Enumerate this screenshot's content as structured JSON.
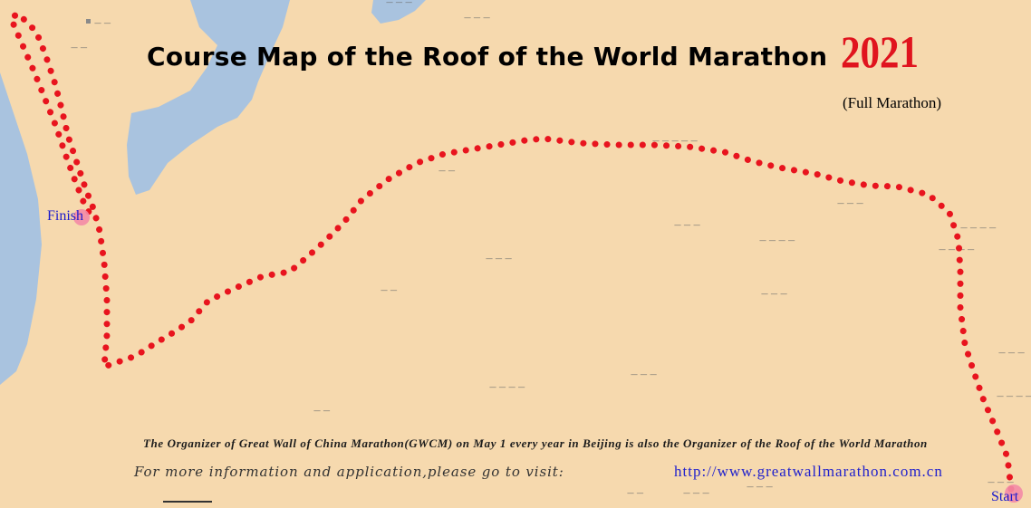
{
  "title": "Course Map of the Roof of the World Marathon",
  "year": "2021",
  "subtitle": "(Full Marathon)",
  "finish_label": "Finish",
  "start_label": "Start",
  "organizer_note": "The Organizer of Great Wall of China Marathon(GWCM) on May 1 every year in Beijing is also the Organizer of the Roof of the World Marathon",
  "info_text": "For more information and application,please go to visit:",
  "url": "http://www.greatwallmarathon.com.cn",
  "colors": {
    "route": "#e8141e",
    "background": "#f6d9ae",
    "water": "#a9c3df",
    "title_year": "#e0141e",
    "label": "#1a1acc"
  }
}
